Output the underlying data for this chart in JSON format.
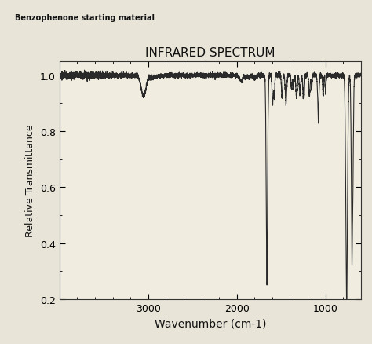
{
  "title": "INFRARED SPECTRUM",
  "xlabel": "Wavenumber (cm-1)",
  "ylabel": "Relative Transmittance",
  "subtitle": "Benzophenone starting material",
  "background_color": "#e8e4d8",
  "plot_bg_color": "#f0ece0",
  "xlim": [
    4000,
    600
  ],
  "ylim": [
    0.2,
    1.05
  ],
  "yticks": [
    0.2,
    0.4,
    0.6,
    0.8,
    1.0
  ],
  "xticks": [
    3000,
    2000,
    1000
  ],
  "line_color": "#2a2a2a",
  "line_width": 0.8
}
